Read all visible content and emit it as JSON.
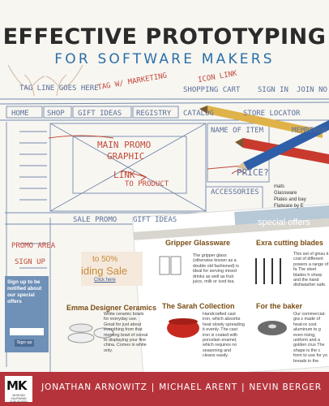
{
  "cover": {
    "title": "EFFECTIVE PROTOTYPING",
    "subtitle": "FOR SOFTWARE MAKERS",
    "authors": [
      "JONATHAN ARNOWITZ",
      "MICHAEL ARENT",
      "NEVIN BERGER"
    ],
    "publisher_logo_text": "MK",
    "publisher_name": "MORGAN KAUFMANN PUBLISHERS",
    "colors": {
      "band": "#b5343c",
      "subtitle": "#2a6fa8",
      "title": "#2b2b2b"
    }
  },
  "sketch": {
    "tag_line": "TAG LINE GOES HERE",
    "tag_line_marketing": "TAG W/ MARKETING",
    "icon_link": "ICON LINK",
    "shopping_cart": "SHOPPING CART",
    "sign_in": "SIGN IN",
    "join_now": "JOIN NO",
    "nav_tabs": [
      "HOME",
      "SHOP",
      "GIFT IDEAS",
      "REGISTRY",
      "CATALOG",
      "STORE LOCATOR"
    ],
    "main_promo": "MAIN PROMO",
    "graphic": "GRAPHIC",
    "link": "LINK",
    "to_product": "TO PRODUCT",
    "name_of_item": "NAME OF ITEM",
    "membership": "MEMBERSH",
    "price": "PRICE?",
    "accessories": "ACCESSORIES",
    "sale_promo": "SALE PROMO",
    "gift_ideas": "GIFT IDEAS",
    "special_offers": "special offers",
    "promo_area": "PROMO AREA",
    "sign_up": "SIGN UP"
  },
  "web": {
    "sale_percent": "to 50%",
    "sale_title": "iding Sale",
    "click_here": "Click here",
    "related_items": [
      "mats",
      "Glassware",
      "Plates and bay",
      "Flatware by E"
    ],
    "signup_text": "Sign up to be notified about our special offers",
    "signup_button": "Sign up",
    "columns": [
      {
        "title": "Gripper Glassware",
        "text": "The gripper glass (otherwise known as a double old fashioned) is ideal for serving mixed drinks as well as fruit juice, milk or iced tea."
      },
      {
        "title": "Exra cutting blades",
        "text": "This set of ginsu k cost of different powers a range of fa The steel blades h sharp and the hand dishwasher safe."
      },
      {
        "title": "Emma Designer Ceramics",
        "text": "White ceramic bowls for everyday use. Great for just about everything from that morning bowl of cereal to displaying your fine china. Comes in white only."
      },
      {
        "title": "The Sarah Collection",
        "text": "Handcrafted cast iron, which absorbs heat slowly spreading it evenly. The cast iron is coated with porcelain enamel, which requires no seasoning and cleans easily."
      },
      {
        "title": "For the baker",
        "text": "Our commercial-gra s made of heat-re cost aluminum to g even rising, uniform and a golden crus The shape is the c form to use for yo breads in the"
      }
    ]
  }
}
